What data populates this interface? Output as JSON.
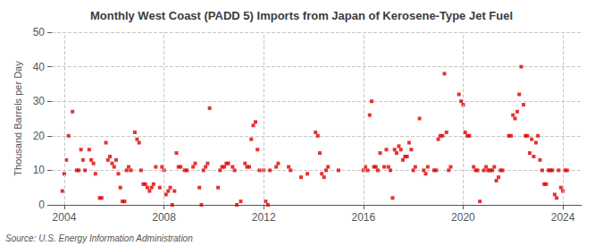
{
  "chart_data": {
    "type": "scatter",
    "title": "Monthly West Coast (PADD 5) Imports from Japan of Kerosene-Type Jet Fuel",
    "ylabel": "Thousand Barrels per Day",
    "annotations": [
      "Source: U.S. Energy Information Administration"
    ],
    "color": "#dd0000",
    "marker": "square",
    "grid": true,
    "xlim": [
      2003.5,
      2024.75
    ],
    "xticks": [
      2004,
      2008,
      2012,
      2016,
      2020,
      2024
    ],
    "ylim": [
      0,
      50
    ],
    "yticks": [
      0,
      10,
      20,
      30,
      40,
      50
    ],
    "x": [
      2003.92,
      2004.0,
      2004.08,
      2004.17,
      2004.33,
      2004.5,
      2004.58,
      2004.67,
      2004.75,
      2004.83,
      2005.0,
      2005.08,
      2005.17,
      2005.25,
      2005.42,
      2005.5,
      2005.67,
      2005.75,
      2005.83,
      2005.92,
      2006.0,
      2006.08,
      2006.17,
      2006.25,
      2006.33,
      2006.42,
      2006.5,
      2006.58,
      2006.67,
      2006.83,
      2006.92,
      2007.0,
      2007.08,
      2007.17,
      2007.25,
      2007.33,
      2007.42,
      2007.5,
      2007.58,
      2007.67,
      2007.83,
      2007.92,
      2008.0,
      2008.08,
      2008.17,
      2008.25,
      2008.33,
      2008.42,
      2008.5,
      2008.58,
      2008.67,
      2008.83,
      2008.92,
      2009.17,
      2009.25,
      2009.42,
      2009.5,
      2009.58,
      2009.67,
      2009.75,
      2009.83,
      2010.17,
      2010.25,
      2010.33,
      2010.42,
      2010.5,
      2010.58,
      2010.75,
      2010.83,
      2010.92,
      2011.08,
      2011.25,
      2011.33,
      2011.42,
      2011.5,
      2011.58,
      2011.67,
      2011.75,
      2011.83,
      2012.0,
      2012.08,
      2012.17,
      2012.25,
      2012.5,
      2012.58,
      2013.0,
      2013.08,
      2013.5,
      2013.75,
      2014.08,
      2014.17,
      2014.25,
      2014.33,
      2014.42,
      2014.5,
      2014.58,
      2015.0,
      2016.0,
      2016.08,
      2016.17,
      2016.25,
      2016.33,
      2016.42,
      2016.5,
      2016.58,
      2016.67,
      2016.83,
      2016.92,
      2017.0,
      2017.08,
      2017.17,
      2017.25,
      2017.33,
      2017.42,
      2017.5,
      2017.58,
      2017.67,
      2017.75,
      2017.83,
      2017.92,
      2018.0,
      2018.08,
      2018.25,
      2018.42,
      2018.5,
      2018.58,
      2018.83,
      2018.92,
      2019.0,
      2019.08,
      2019.17,
      2019.25,
      2019.33,
      2019.42,
      2019.5,
      2019.83,
      2019.92,
      2020.0,
      2020.08,
      2020.17,
      2020.25,
      2020.42,
      2020.5,
      2020.58,
      2020.67,
      2020.83,
      2020.92,
      2021.0,
      2021.08,
      2021.17,
      2021.25,
      2021.33,
      2021.42,
      2021.5,
      2021.58,
      2021.83,
      2021.92,
      2022.0,
      2022.08,
      2022.17,
      2022.25,
      2022.33,
      2022.42,
      2022.5,
      2022.58,
      2022.67,
      2022.75,
      2022.83,
      2022.92,
      2023.0,
      2023.08,
      2023.17,
      2023.25,
      2023.33,
      2023.42,
      2023.5,
      2023.58,
      2023.67,
      2023.75,
      2023.83,
      2023.92,
      2024.0,
      2024.08,
      2024.17
    ],
    "values": [
      4,
      9,
      13,
      20,
      27,
      10,
      10,
      16,
      13,
      10,
      16,
      13,
      12,
      9,
      2,
      2,
      18,
      13,
      14,
      12,
      11,
      13,
      9,
      5,
      1,
      1,
      10,
      11,
      10,
      21,
      19,
      18,
      10,
      6,
      6,
      5,
      4,
      5,
      6,
      11,
      5,
      11,
      10,
      3,
      4,
      5,
      0,
      4,
      15,
      11,
      11,
      10,
      10,
      11,
      12,
      5,
      0,
      10,
      11,
      12,
      28,
      5,
      10,
      11,
      11,
      12,
      12,
      11,
      10,
      0,
      1,
      12,
      11,
      11,
      19,
      23,
      24,
      16,
      10,
      10,
      1,
      0,
      10,
      11,
      12,
      11,
      10,
      8,
      9,
      21,
      20,
      15,
      9,
      8,
      10,
      11,
      10,
      10,
      11,
      10,
      26,
      30,
      11,
      11,
      10,
      15,
      11,
      16,
      11,
      10,
      2,
      16,
      15,
      17,
      16,
      13,
      14,
      14,
      18,
      16,
      10,
      11,
      25,
      10,
      9,
      11,
      10,
      10,
      19,
      20,
      20,
      38,
      21,
      10,
      11,
      32,
      30,
      29,
      21,
      20,
      20,
      11,
      10,
      10,
      1,
      10,
      11,
      10,
      10,
      10,
      11,
      7,
      8,
      10,
      10,
      20,
      20,
      26,
      25,
      27,
      32,
      40,
      29,
      20,
      20,
      15,
      19,
      14,
      18,
      20,
      13,
      10,
      6,
      6,
      10,
      10,
      10,
      3,
      2,
      10,
      5,
      4,
      10,
      10
    ]
  }
}
